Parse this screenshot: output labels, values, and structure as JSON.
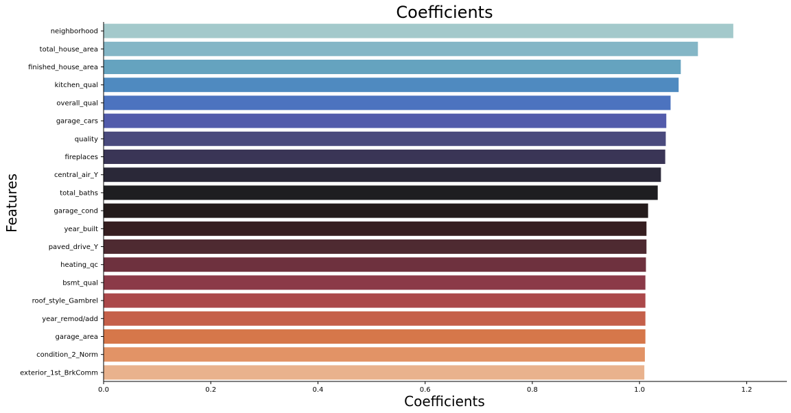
{
  "chart_data": {
    "type": "bar",
    "orientation": "horizontal",
    "title": "Coefficients",
    "xlabel": "Coefficients",
    "ylabel": "Features",
    "xlim": [
      0,
      1.275
    ],
    "x_ticks": [
      0.0,
      0.2,
      0.4,
      0.6,
      0.8,
      1.0,
      1.2
    ],
    "x_tick_labels": [
      "0.0",
      "0.2",
      "0.4",
      "0.6",
      "0.8",
      "1.0",
      "1.2"
    ],
    "grid": false,
    "legend": "none",
    "categories": [
      "neighborhood",
      "total_house_area",
      "finished_house_area",
      "kitchen_qual",
      "overall_qual",
      "garage_cars",
      "quality",
      "fireplaces",
      "central_air_Y",
      "total_baths",
      "garage_cond",
      "year_built",
      "paved_drive_Y",
      "heating_qc",
      "bsmt_qual",
      "roof_style_Gambrel",
      "year_remod/add",
      "garage_area",
      "condition_2_Norm",
      "exterior_1st_BrkComm"
    ],
    "values": [
      1.175,
      1.109,
      1.077,
      1.073,
      1.058,
      1.05,
      1.049,
      1.048,
      1.04,
      1.034,
      1.016,
      1.013,
      1.013,
      1.012,
      1.011,
      1.011,
      1.011,
      1.011,
      1.01,
      1.009
    ],
    "colors": [
      "#a3c9cb",
      "#84b6c6",
      "#65a3bf",
      "#4f8ac0",
      "#4c73bf",
      "#525bab",
      "#4a4a7d",
      "#3a3556",
      "#2a2838",
      "#1e1e21",
      "#241b1b",
      "#361e20",
      "#4e2a31",
      "#6e313e",
      "#8b3a48",
      "#ab484a",
      "#c5604a",
      "#d6774a",
      "#e29366",
      "#e9b28d"
    ]
  }
}
